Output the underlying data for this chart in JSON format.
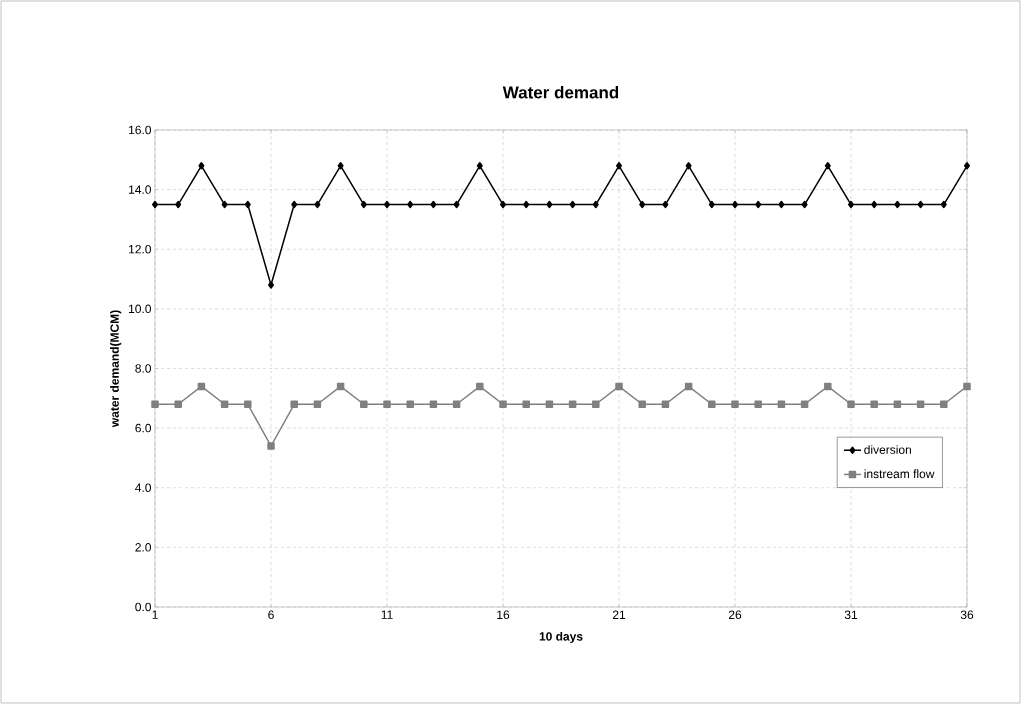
{
  "chart_data": {
    "type": "line",
    "title": "Water demand",
    "xlabel": "10 days",
    "ylabel": "water demand(MCM)",
    "x": [
      1,
      2,
      3,
      4,
      5,
      6,
      7,
      8,
      9,
      10,
      11,
      12,
      13,
      14,
      15,
      16,
      17,
      18,
      19,
      20,
      21,
      22,
      23,
      24,
      25,
      26,
      27,
      28,
      29,
      30,
      31,
      32,
      33,
      34,
      35,
      36
    ],
    "series": [
      {
        "name": "diversion",
        "color": "#000000",
        "marker": "diamond",
        "values": [
          13.5,
          13.5,
          14.8,
          13.5,
          13.5,
          10.8,
          13.5,
          13.5,
          14.8,
          13.5,
          13.5,
          13.5,
          13.5,
          13.5,
          14.8,
          13.5,
          13.5,
          13.5,
          13.5,
          13.5,
          14.8,
          13.5,
          13.5,
          14.8,
          13.5,
          13.5,
          13.5,
          13.5,
          13.5,
          14.8,
          13.5,
          13.5,
          13.5,
          13.5,
          13.5,
          14.8
        ]
      },
      {
        "name": "instream flow",
        "color": "#808080",
        "marker": "square",
        "values": [
          6.8,
          6.8,
          7.4,
          6.8,
          6.8,
          5.4,
          6.8,
          6.8,
          7.4,
          6.8,
          6.8,
          6.8,
          6.8,
          6.8,
          7.4,
          6.8,
          6.8,
          6.8,
          6.8,
          6.8,
          7.4,
          6.8,
          6.8,
          7.4,
          6.8,
          6.8,
          6.8,
          6.8,
          6.8,
          7.4,
          6.8,
          6.8,
          6.8,
          6.8,
          6.8,
          7.4
        ]
      }
    ],
    "xlim": [
      1,
      36
    ],
    "xticks": [
      1,
      6,
      11,
      16,
      21,
      26,
      31,
      36
    ],
    "ylim": [
      0,
      16
    ],
    "yticks": [
      {
        "value": 0,
        "label": "0.0"
      },
      {
        "value": 2,
        "label": "2.0"
      },
      {
        "value": 4,
        "label": "4.0"
      },
      {
        "value": 6,
        "label": "6.0"
      },
      {
        "value": 8,
        "label": "8.0"
      },
      {
        "value": 10,
        "label": "10.0"
      },
      {
        "value": 12,
        "label": "12.0"
      },
      {
        "value": 14,
        "label": "14.0"
      },
      {
        "value": 16,
        "label": "16.0"
      }
    ],
    "grid": true,
    "legend": "right",
    "line_style": "solid"
  }
}
